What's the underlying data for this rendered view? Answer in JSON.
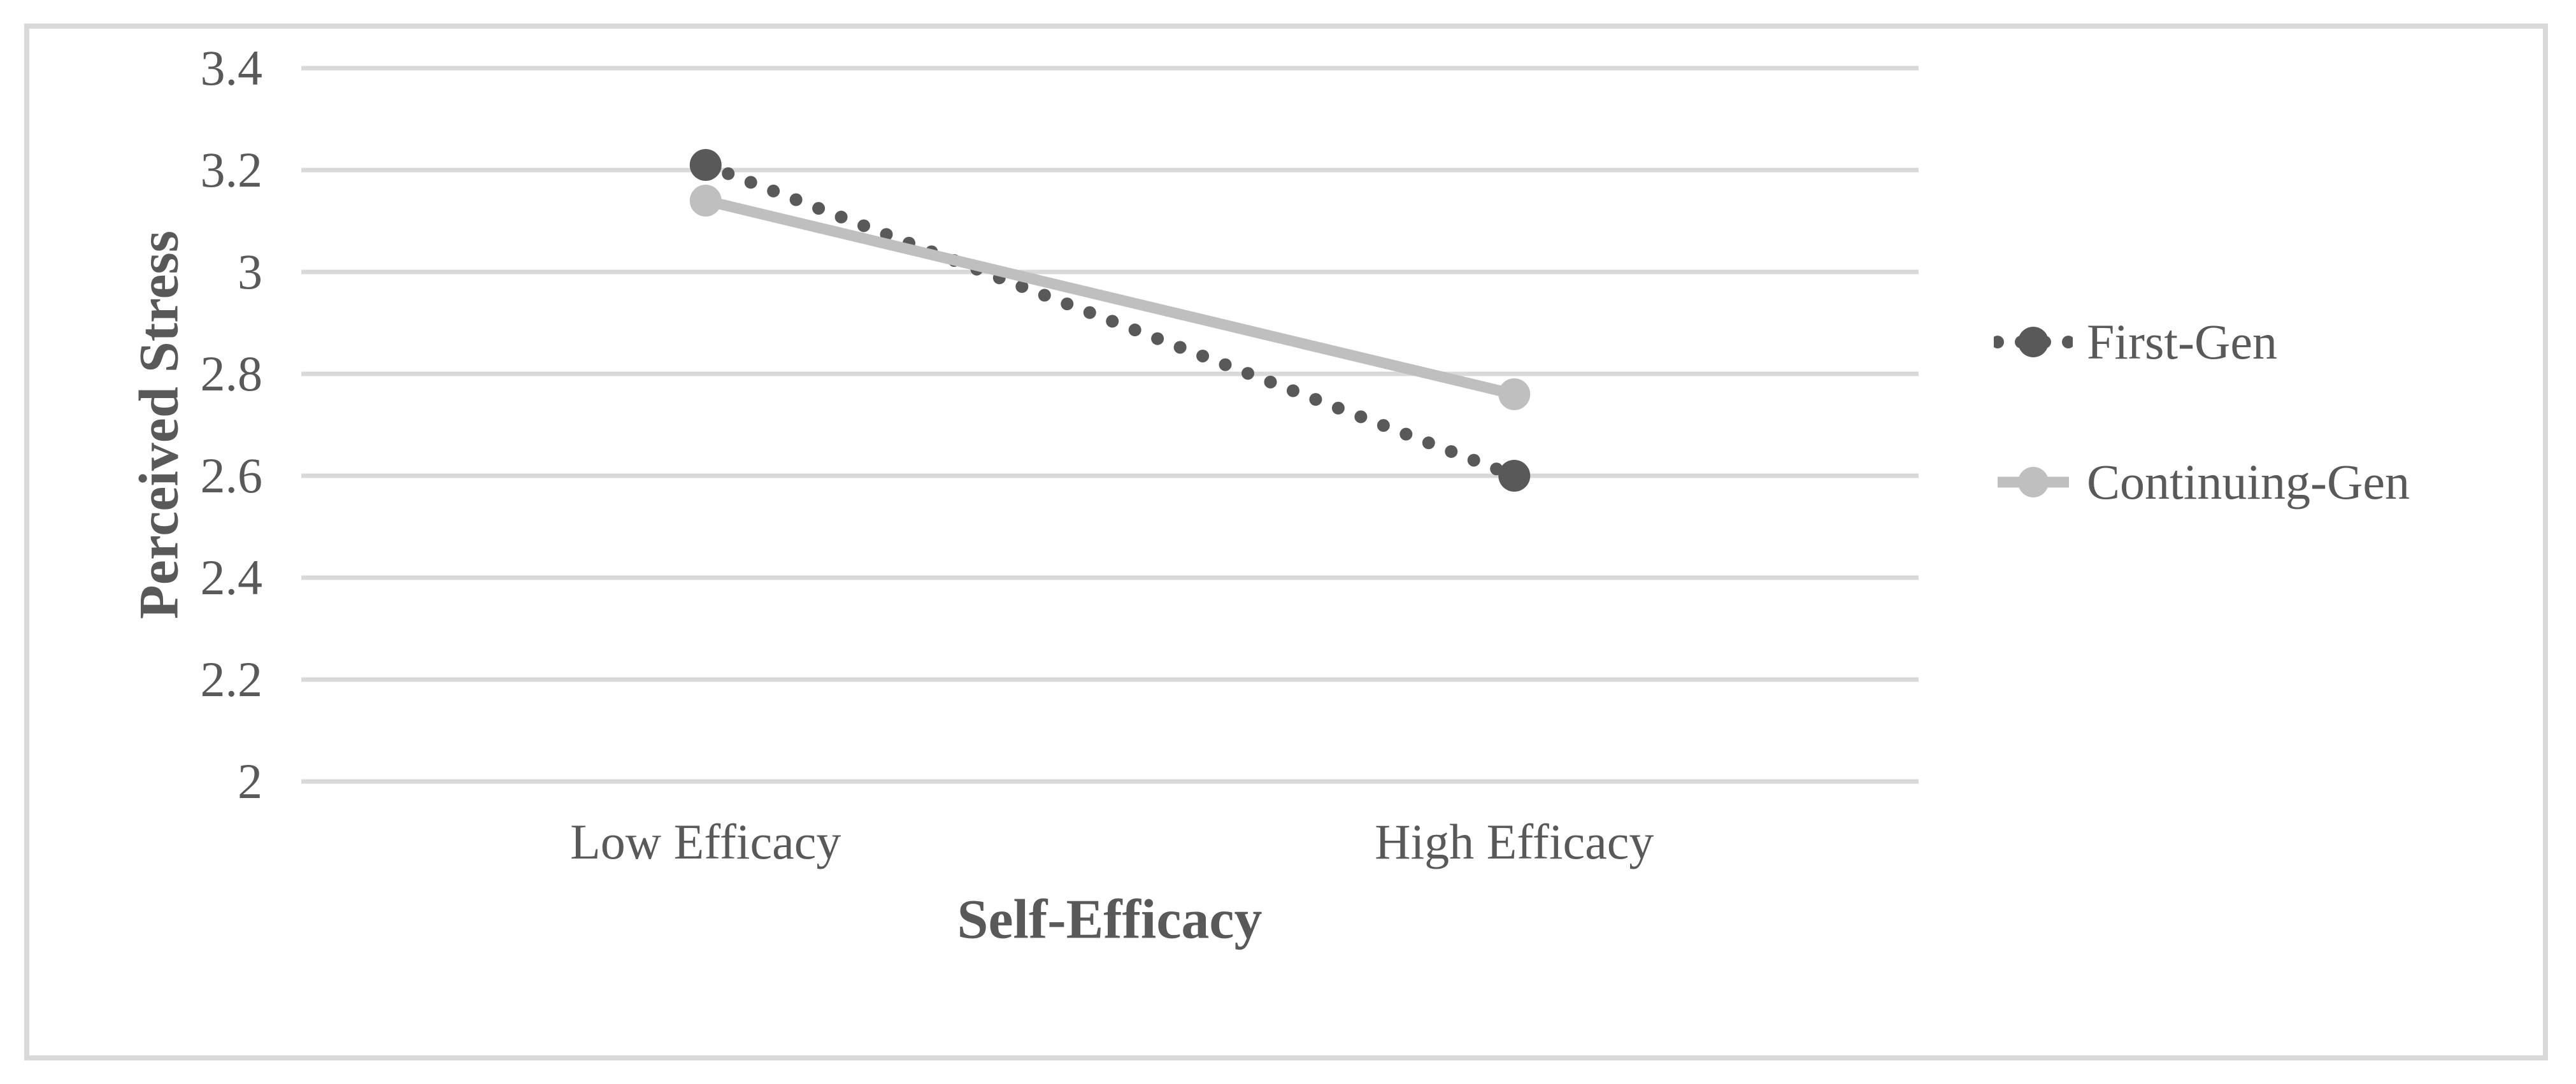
{
  "chart_data": {
    "type": "line",
    "title": "",
    "xlabel": "Self-Efficacy",
    "ylabel": "Perceived Stress",
    "categories": [
      "Low Efficacy",
      "High Efficacy"
    ],
    "series": [
      {
        "name": "First-Gen",
        "values": [
          3.21,
          2.6
        ],
        "color": "#595959",
        "line_style": "dotted",
        "marker": "circle"
      },
      {
        "name": "Continuing-Gen",
        "values": [
          3.14,
          2.76
        ],
        "color": "#bfbfbf",
        "line_style": "solid",
        "marker": "circle"
      }
    ],
    "ylim": [
      2.0,
      3.4
    ],
    "ytick_step": 0.2,
    "yticks": [
      "3.4",
      "3.2",
      "3",
      "2.8",
      "2.6",
      "2.4",
      "2.2",
      "2"
    ],
    "grid": "horizontal-only",
    "gridline_color": "#d9d9d9",
    "frame_border_color": "#d9d9d9",
    "text_color": "#595959",
    "legend_position": "right",
    "background": "#ffffff"
  }
}
